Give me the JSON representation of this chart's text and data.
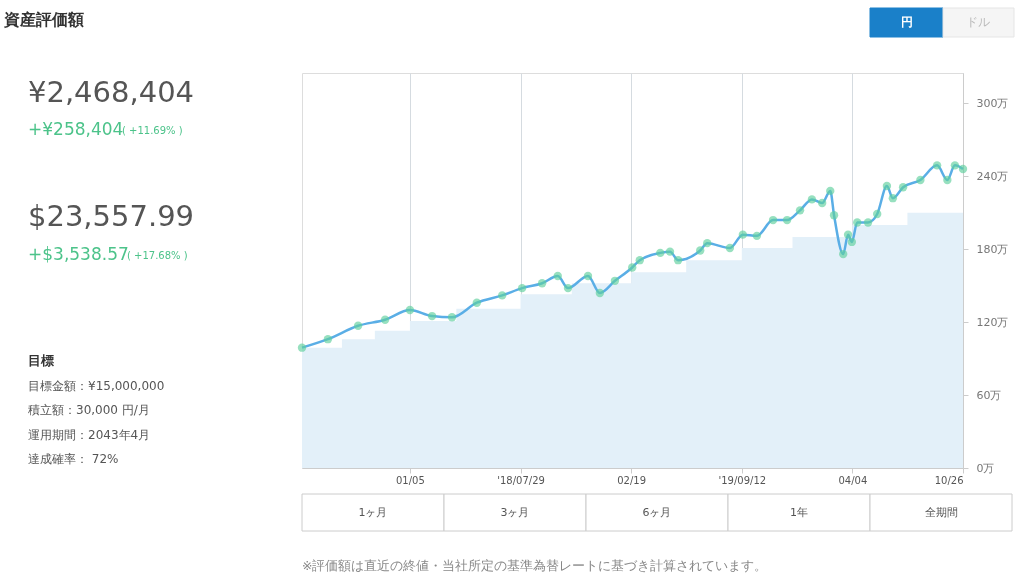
{
  "chart_data": {
    "type": "line",
    "title": "資産評価額",
    "annotations": [
      "円",
      "ドル",
      "¥2,468,404",
      "+¥258,404",
      "( +11.69% )",
      "$23,557.99",
      "+$3,538.57",
      "( +17.68% )",
      "目標",
      "目標金額：¥15,000,000",
      "積立額：30,000 円/月",
      "運用期間：2043年4月",
      "達成確率： 72%",
      "1ヶ月",
      "3ヶ月",
      "6ヶ月",
      "1年",
      "全期間",
      "※評価額は直近の終値・当社所定の基準為替レートに基づき計算されています。"
    ],
    "xlim": [
      "2017-06-19",
      "2020-10-26"
    ],
    "xticks": [
      {
        "value": "2018-01-05",
        "label": "01/05"
      },
      {
        "value": "2018-07-29",
        "label": "'18/07/29"
      },
      {
        "value": "2019-02-19",
        "label": "02/19"
      },
      {
        "value": "2019-09-12",
        "label": "'19/09/12"
      },
      {
        "value": "2020-04-04",
        "label": "04/04"
      },
      {
        "value": "2020-10-26",
        "label": "10/26"
      }
    ],
    "ylim": [
      0,
      325
    ],
    "yticks": [
      {
        "value": 0,
        "label": "0万"
      },
      {
        "value": 60,
        "label": "60万"
      },
      {
        "value": 120,
        "label": "120万"
      },
      {
        "value": 180,
        "label": "180万"
      },
      {
        "value": 240,
        "label": "240万"
      },
      {
        "value": 300,
        "label": "300万"
      }
    ],
    "grid": "x",
    "series": [
      {
        "type": "area",
        "color": "#e3f0f9",
        "x": [
          "2017-06-19",
          "2017-09-01",
          "2017-11-01",
          "2018-01-05",
          "2018-04-01",
          "2018-07-29",
          "2018-11-01",
          "2019-02-19",
          "2019-06-01",
          "2019-09-12",
          "2019-12-15",
          "2020-04-04",
          "2020-07-15",
          "2020-10-26"
        ],
        "values": [
          99,
          106,
          113,
          121,
          131,
          143,
          152,
          161,
          171,
          181,
          190,
          200,
          210,
          220
        ]
      },
      {
        "color": "#5aaee6",
        "x": [
          "2017-06-19",
          "2017-08-06",
          "2017-10-01",
          "2017-11-20",
          "2018-01-05",
          "2018-02-15",
          "2018-03-24",
          "2018-05-09",
          "2018-06-25",
          "2018-08-01",
          "2018-09-07",
          "2018-10-06",
          "2018-10-25",
          "2018-12-01",
          "2018-12-23",
          "2019-01-20",
          "2019-02-21",
          "2019-03-07",
          "2019-04-14",
          "2019-05-02",
          "2019-05-17",
          "2019-06-27",
          "2019-07-10",
          "2019-08-21",
          "2019-09-14",
          "2019-10-10",
          "2019-11-09",
          "2019-12-05",
          "2019-12-29",
          "2020-01-20",
          "2020-02-08",
          "2020-02-23",
          "2020-03-01",
          "2020-03-18",
          "2020-03-27",
          "2020-04-03",
          "2020-04-13",
          "2020-05-03",
          "2020-05-20",
          "2020-06-07",
          "2020-06-18",
          "2020-07-07",
          "2020-08-08",
          "2020-09-08",
          "2020-09-27",
          "2020-10-11",
          "2020-10-26"
        ],
        "values": [
          99,
          106,
          117,
          122,
          130,
          125,
          124,
          136,
          142,
          148,
          152,
          158,
          148,
          158,
          144,
          154,
          165,
          171,
          177,
          178,
          171,
          179,
          185,
          181,
          192,
          191,
          204,
          204,
          212,
          221,
          218,
          228,
          208,
          176,
          192,
          186,
          202,
          202,
          209,
          232,
          222,
          231,
          237,
          249,
          237,
          249,
          246
        ]
      },
      {
        "type": "scatter",
        "color": "#5fcf9c",
        "x": [
          "2017-06-19",
          "2017-08-06",
          "2017-10-01",
          "2017-11-20",
          "2018-01-05",
          "2018-02-15",
          "2018-03-24",
          "2018-05-09",
          "2018-06-25",
          "2018-08-01",
          "2018-09-07",
          "2018-10-06",
          "2018-10-25",
          "2018-12-01",
          "2018-12-23",
          "2019-01-20",
          "2019-02-21",
          "2019-03-07",
          "2019-04-14",
          "2019-05-02",
          "2019-05-17",
          "2019-06-27",
          "2019-07-10",
          "2019-08-21",
          "2019-09-14",
          "2019-10-10",
          "2019-11-09",
          "2019-12-05",
          "2019-12-29",
          "2020-01-20",
          "2020-02-08",
          "2020-02-23",
          "2020-03-01",
          "2020-03-18",
          "2020-03-27",
          "2020-04-03",
          "2020-04-13",
          "2020-05-03",
          "2020-05-20",
          "2020-06-07",
          "2020-06-18",
          "2020-07-07",
          "2020-08-08",
          "2020-09-08",
          "2020-09-27",
          "2020-10-11",
          "2020-10-26"
        ],
        "values": [
          99,
          106,
          117,
          122,
          130,
          125,
          124,
          136,
          142,
          148,
          152,
          158,
          148,
          158,
          144,
          154,
          165,
          171,
          177,
          178,
          171,
          179,
          185,
          181,
          192,
          191,
          204,
          204,
          212,
          221,
          218,
          228,
          208,
          176,
          192,
          186,
          202,
          202,
          209,
          232,
          222,
          231,
          237,
          249,
          237,
          249,
          246
        ]
      }
    ]
  }
}
